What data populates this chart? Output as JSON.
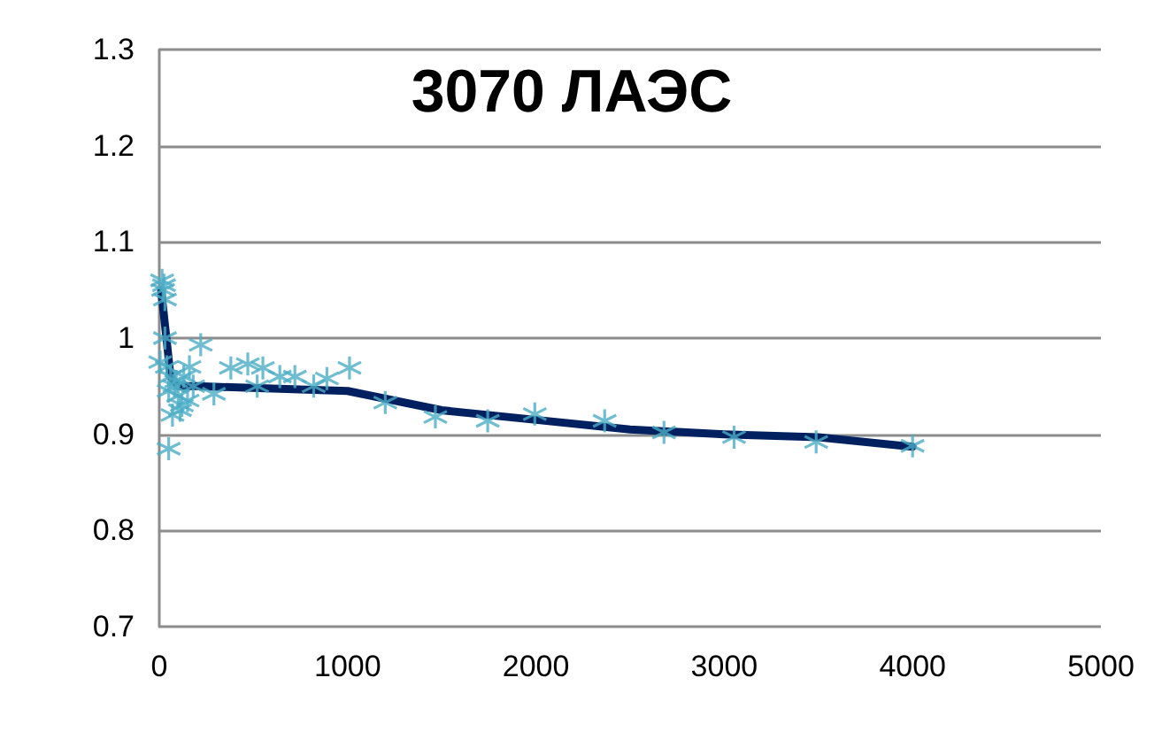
{
  "chart_data": {
    "type": "scatter",
    "title": "3070 ЛАЭС",
    "xlim": [
      0,
      5000
    ],
    "xticks": [
      0,
      1000,
      2000,
      3000,
      4000,
      5000
    ],
    "ylim": [
      0.7,
      1.3
    ],
    "yticks": [
      0.7,
      0.8,
      0.9,
      1,
      1.1,
      1.2,
      1.3
    ],
    "grid": "y",
    "marker": "cross",
    "series": [
      {
        "color": "#4bacc6",
        "x": [
          15,
          20,
          25,
          30,
          30,
          5,
          220,
          50,
          40,
          60,
          80,
          100,
          120,
          70,
          150,
          130,
          160,
          180,
          90,
          110,
          50,
          290,
          380,
          470,
          550,
          520,
          640,
          720,
          820,
          890,
          1010,
          1200,
          1466,
          1744,
          1994,
          2365,
          2680,
          3052,
          3488,
          4000
        ],
        "values": [
          1.06,
          1.05,
          1.055,
          1.04,
          1.0,
          0.975,
          0.993,
          0.885,
          0.97,
          0.96,
          0.95,
          0.94,
          0.93,
          0.92,
          0.935,
          0.96,
          0.97,
          0.95,
          0.955,
          0.925,
          0.945,
          0.942,
          0.969,
          0.973,
          0.969,
          0.95,
          0.96,
          0.96,
          0.95,
          0.958,
          0.969,
          0.933,
          0.918,
          0.914,
          0.921,
          0.914,
          0.902,
          0.897,
          0.892,
          0.888
        ]
      },
      {
        "type": "line",
        "color": "#002060",
        "line_style": "solid",
        "marker": "none",
        "x": [
          10,
          60,
          100,
          200,
          1000,
          1500,
          2000,
          2500,
          3000,
          3500,
          4000
        ],
        "values": [
          1.05,
          0.96,
          0.95,
          0.95,
          0.945,
          0.925,
          0.915,
          0.905,
          0.9,
          0.897,
          0.887
        ]
      }
    ]
  }
}
